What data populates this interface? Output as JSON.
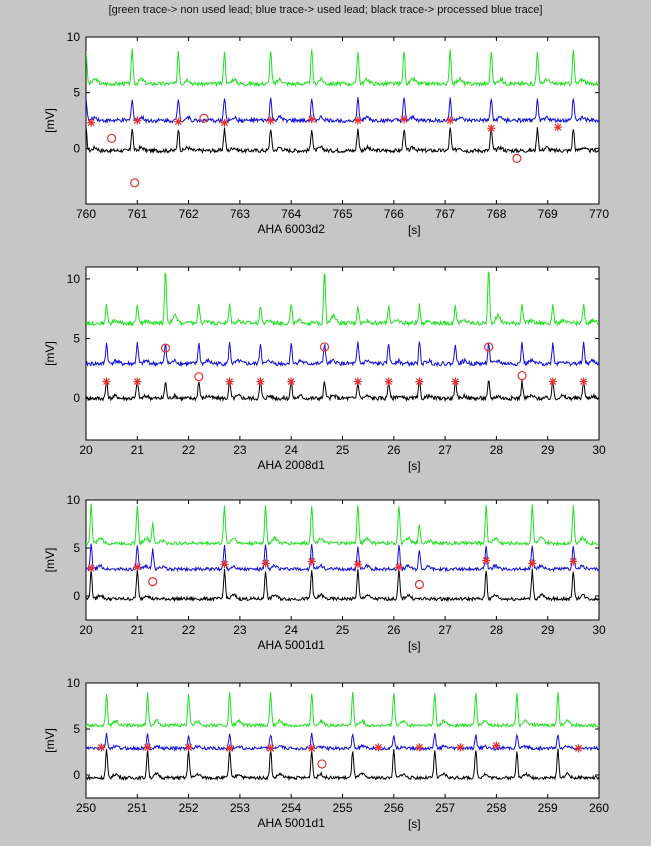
{
  "figure": {
    "header": "[green trace-> non used lead; blue trace-> used lead; black trace-> processed blue trace]",
    "background": "#c6c6c6",
    "axes_background": "#ffffff"
  },
  "colors": {
    "green": "#22e022",
    "blue": "#1010d8",
    "black": "#000000",
    "marker": "#e83030"
  },
  "chart_data": [
    {
      "type": "line",
      "xlabel": "AHA 6003d2",
      "xunit": "[s]",
      "ylabel": "[mV]",
      "xlim": [
        760,
        770
      ],
      "ylim": [
        -5,
        10
      ],
      "xticks": [
        760,
        761,
        762,
        763,
        764,
        765,
        766,
        767,
        768,
        769,
        770
      ],
      "yticks": [
        0,
        5,
        10
      ],
      "series": [
        {
          "color": "green",
          "baseline": 5.8,
          "beats": [
            [
              760.0,
              3.0
            ],
            [
              760.9,
              3.0
            ],
            [
              761.8,
              3.0
            ],
            [
              762.7,
              3.0
            ],
            [
              763.6,
              3.0
            ],
            [
              764.4,
              3.0
            ],
            [
              765.3,
              3.0
            ],
            [
              766.2,
              3.0
            ],
            [
              767.1,
              3.0
            ],
            [
              767.9,
              3.0
            ],
            [
              768.8,
              3.0
            ],
            [
              769.5,
              3.0
            ]
          ]
        },
        {
          "color": "blue",
          "baseline": 2.5,
          "beats": [
            [
              760.0,
              2.0
            ],
            [
              760.9,
              2.0
            ],
            [
              761.8,
              2.0
            ],
            [
              762.7,
              2.0
            ],
            [
              763.6,
              2.0
            ],
            [
              764.4,
              2.0
            ],
            [
              765.3,
              2.0
            ],
            [
              766.2,
              2.0
            ],
            [
              767.1,
              2.0
            ],
            [
              767.9,
              2.0
            ],
            [
              768.8,
              2.0
            ],
            [
              769.5,
              2.0
            ]
          ]
        },
        {
          "color": "black",
          "baseline": -0.2,
          "beats": [
            [
              760.0,
              2.0
            ],
            [
              760.9,
              2.0
            ],
            [
              761.8,
              2.0
            ],
            [
              762.7,
              2.0
            ],
            [
              763.6,
              2.0
            ],
            [
              764.4,
              2.0
            ],
            [
              765.3,
              2.0
            ],
            [
              766.2,
              2.0
            ],
            [
              767.1,
              2.0
            ],
            [
              767.9,
              2.0
            ],
            [
              768.8,
              2.0
            ],
            [
              769.5,
              2.0
            ]
          ]
        }
      ],
      "star_markers": [
        [
          760.1,
          2.3
        ],
        [
          761.0,
          2.5
        ],
        [
          761.8,
          2.4
        ],
        [
          762.7,
          2.3
        ],
        [
          763.6,
          2.5
        ],
        [
          764.4,
          2.6
        ],
        [
          765.3,
          2.5
        ],
        [
          766.2,
          2.6
        ],
        [
          767.1,
          2.5
        ],
        [
          767.9,
          1.8
        ],
        [
          769.2,
          1.9
        ]
      ],
      "circle_markers": [
        [
          760.5,
          0.9
        ],
        [
          760.95,
          -3.1
        ],
        [
          762.3,
          2.7
        ],
        [
          768.4,
          -0.9
        ]
      ]
    },
    {
      "type": "line",
      "xlabel": "AHA 2008d1",
      "xunit": "[s]",
      "ylabel": "[mV]",
      "xlim": [
        20,
        30
      ],
      "ylim": [
        -3.5,
        11
      ],
      "xticks": [
        20,
        21,
        22,
        23,
        24,
        25,
        26,
        27,
        28,
        29,
        30
      ],
      "yticks": [
        0,
        5,
        10
      ],
      "series": [
        {
          "color": "green",
          "baseline": 6.3,
          "beats": [
            [
              20.4,
              1.5
            ],
            [
              21.0,
              1.5
            ],
            [
              21.55,
              4.5
            ],
            [
              22.2,
              1.5
            ],
            [
              22.8,
              1.5
            ],
            [
              23.4,
              1.5
            ],
            [
              24.0,
              1.5
            ],
            [
              24.65,
              4.5
            ],
            [
              25.3,
              1.5
            ],
            [
              25.9,
              1.5
            ],
            [
              26.5,
              1.5
            ],
            [
              27.2,
              1.5
            ],
            [
              27.85,
              4.5
            ],
            [
              28.5,
              1.5
            ],
            [
              29.1,
              1.5
            ],
            [
              29.7,
              1.5
            ]
          ]
        },
        {
          "color": "blue",
          "baseline": 2.9,
          "beats": [
            [
              20.4,
              1.7
            ],
            [
              21.0,
              1.7
            ],
            [
              21.55,
              1.7
            ],
            [
              22.2,
              1.7
            ],
            [
              22.8,
              1.7
            ],
            [
              23.4,
              1.7
            ],
            [
              24.0,
              1.7
            ],
            [
              24.65,
              1.7
            ],
            [
              25.3,
              1.7
            ],
            [
              25.9,
              1.7
            ],
            [
              26.5,
              1.7
            ],
            [
              27.2,
              1.7
            ],
            [
              27.85,
              1.7
            ],
            [
              28.5,
              1.7
            ],
            [
              29.1,
              1.7
            ],
            [
              29.7,
              1.7
            ]
          ]
        },
        {
          "color": "black",
          "baseline": 0.0,
          "beats": [
            [
              20.4,
              1.4
            ],
            [
              21.0,
              1.4
            ],
            [
              21.55,
              1.4
            ],
            [
              22.2,
              1.4
            ],
            [
              22.8,
              1.4
            ],
            [
              23.4,
              1.4
            ],
            [
              24.0,
              1.4
            ],
            [
              24.65,
              1.4
            ],
            [
              25.3,
              1.4
            ],
            [
              25.9,
              1.4
            ],
            [
              26.5,
              1.4
            ],
            [
              27.2,
              1.4
            ],
            [
              27.85,
              1.4
            ],
            [
              28.5,
              1.4
            ],
            [
              29.1,
              1.4
            ],
            [
              29.7,
              1.4
            ]
          ]
        }
      ],
      "star_markers": [
        [
          20.4,
          1.4
        ],
        [
          21.0,
          1.4
        ],
        [
          22.8,
          1.4
        ],
        [
          23.4,
          1.4
        ],
        [
          24.0,
          1.4
        ],
        [
          25.3,
          1.4
        ],
        [
          25.9,
          1.4
        ],
        [
          26.5,
          1.4
        ],
        [
          27.2,
          1.4
        ],
        [
          29.1,
          1.4
        ],
        [
          29.7,
          1.4
        ]
      ],
      "circle_markers": [
        [
          21.55,
          4.2
        ],
        [
          22.2,
          1.8
        ],
        [
          24.65,
          4.3
        ],
        [
          27.85,
          4.3
        ],
        [
          28.5,
          1.9
        ]
      ]
    },
    {
      "type": "line",
      "xlabel": "AHA 5001d1",
      "xunit": "[s]",
      "ylabel": "[mV]",
      "xlim": [
        20,
        30
      ],
      "ylim": [
        -2.5,
        10
      ],
      "xticks": [
        20,
        21,
        22,
        23,
        24,
        25,
        26,
        27,
        28,
        29,
        30
      ],
      "yticks": [
        0,
        5,
        10
      ],
      "series": [
        {
          "color": "green",
          "baseline": 5.5,
          "beats": [
            [
              20.1,
              4.0
            ],
            [
              21.0,
              4.0
            ],
            [
              21.3,
              2.0
            ],
            [
              22.7,
              4.0
            ],
            [
              23.5,
              4.0
            ],
            [
              24.4,
              4.0
            ],
            [
              25.3,
              4.0
            ],
            [
              26.1,
              4.0
            ],
            [
              26.5,
              2.0
            ],
            [
              27.8,
              4.0
            ],
            [
              28.7,
              4.0
            ],
            [
              29.5,
              4.0
            ]
          ]
        },
        {
          "color": "blue",
          "baseline": 2.8,
          "beats": [
            [
              20.1,
              2.5
            ],
            [
              21.0,
              2.5
            ],
            [
              21.3,
              2.0
            ],
            [
              22.7,
              2.5
            ],
            [
              23.5,
              2.5
            ],
            [
              24.4,
              2.5
            ],
            [
              25.3,
              2.5
            ],
            [
              26.1,
              2.5
            ],
            [
              26.5,
              2.0
            ],
            [
              27.8,
              2.5
            ],
            [
              28.7,
              2.5
            ],
            [
              29.5,
              2.5
            ]
          ]
        },
        {
          "color": "black",
          "baseline": -0.3,
          "beats": [
            [
              20.1,
              3.0
            ],
            [
              21.0,
              3.0
            ],
            [
              22.7,
              3.0
            ],
            [
              23.5,
              3.0
            ],
            [
              24.4,
              3.0
            ],
            [
              25.3,
              3.0
            ],
            [
              26.1,
              3.0
            ],
            [
              27.8,
              3.0
            ],
            [
              28.7,
              3.0
            ],
            [
              29.5,
              3.0
            ]
          ]
        }
      ],
      "star_markers": [
        [
          20.1,
          2.9
        ],
        [
          21.0,
          3.0
        ],
        [
          22.7,
          3.3
        ],
        [
          23.5,
          3.4
        ],
        [
          24.4,
          3.6
        ],
        [
          25.3,
          3.3
        ],
        [
          26.1,
          3.0
        ],
        [
          27.8,
          3.7
        ],
        [
          28.7,
          3.4
        ],
        [
          29.5,
          3.6
        ]
      ],
      "circle_markers": [
        [
          21.3,
          1.5
        ],
        [
          26.5,
          1.2
        ]
      ]
    },
    {
      "type": "line",
      "xlabel": "AHA 5001d1",
      "xunit": "[s]",
      "ylabel": "[mV]",
      "xlim": [
        250,
        260
      ],
      "ylim": [
        -2.5,
        10
      ],
      "xticks": [
        250,
        251,
        252,
        253,
        254,
        255,
        256,
        257,
        258,
        259,
        260
      ],
      "yticks": [
        0,
        5,
        10
      ],
      "series": [
        {
          "color": "green",
          "baseline": 5.4,
          "beats": [
            [
              250.4,
              3.5
            ],
            [
              251.2,
              3.5
            ],
            [
              252.0,
              3.5
            ],
            [
              252.8,
              3.5
            ],
            [
              253.6,
              3.5
            ],
            [
              254.4,
              3.5
            ],
            [
              255.2,
              3.5
            ],
            [
              256.0,
              3.5
            ],
            [
              256.8,
              3.5
            ],
            [
              257.6,
              3.5
            ],
            [
              258.4,
              3.5
            ],
            [
              259.2,
              3.5
            ]
          ]
        },
        {
          "color": "blue",
          "baseline": 2.9,
          "beats": [
            [
              250.4,
              1.5
            ],
            [
              251.2,
              1.5
            ],
            [
              252.0,
              1.5
            ],
            [
              252.8,
              1.5
            ],
            [
              253.6,
              1.5
            ],
            [
              254.4,
              1.5
            ],
            [
              255.2,
              1.5
            ],
            [
              256.0,
              1.5
            ],
            [
              256.8,
              1.5
            ],
            [
              257.6,
              1.5
            ],
            [
              258.4,
              1.5
            ],
            [
              259.2,
              1.5
            ]
          ]
        },
        {
          "color": "black",
          "baseline": -0.3,
          "beats": [
            [
              250.4,
              3.0
            ],
            [
              251.2,
              3.0
            ],
            [
              252.0,
              3.0
            ],
            [
              252.8,
              3.0
            ],
            [
              253.6,
              3.0
            ],
            [
              254.4,
              3.0
            ],
            [
              255.2,
              3.0
            ],
            [
              256.0,
              3.0
            ],
            [
              256.8,
              3.0
            ],
            [
              257.6,
              3.0
            ],
            [
              258.4,
              3.0
            ],
            [
              259.2,
              3.0
            ]
          ]
        }
      ],
      "star_markers": [
        [
          250.3,
          3.0
        ],
        [
          251.2,
          3.0
        ],
        [
          252.0,
          3.0
        ],
        [
          252.8,
          2.9
        ],
        [
          253.6,
          2.9
        ],
        [
          254.4,
          2.9
        ],
        [
          255.7,
          3.0
        ],
        [
          256.5,
          3.0
        ],
        [
          257.3,
          3.0
        ],
        [
          258.0,
          3.2
        ],
        [
          259.6,
          2.9
        ]
      ],
      "circle_markers": [
        [
          254.6,
          1.2
        ]
      ]
    }
  ]
}
